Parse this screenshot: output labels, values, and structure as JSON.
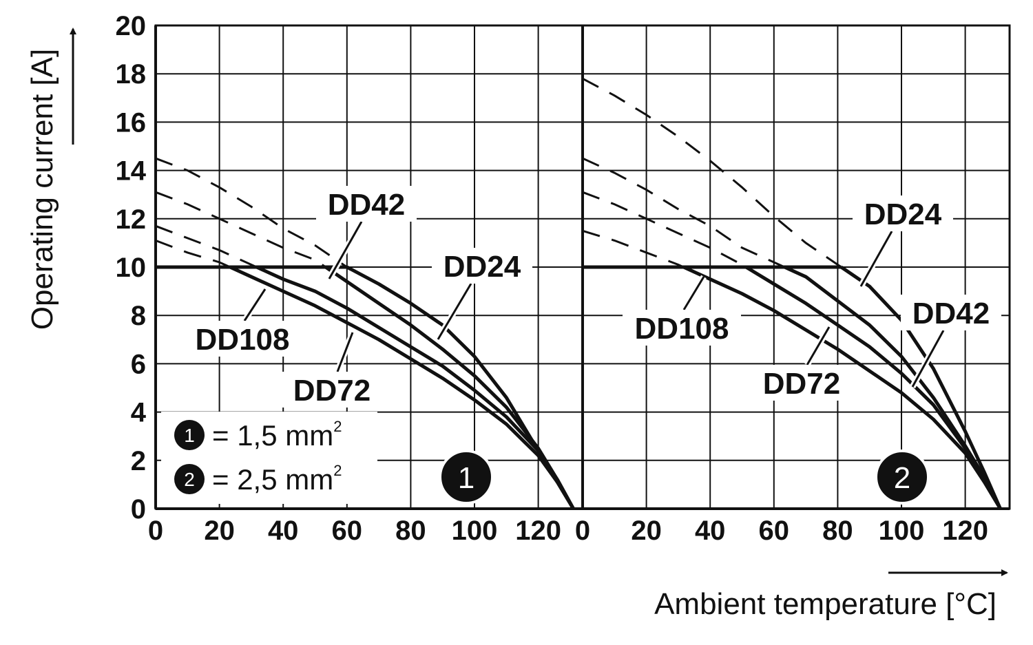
{
  "chart_data": [
    {
      "type": "line",
      "panel_marker": "1",
      "xlabel": "Ambient temperature [°C]",
      "ylabel": "Operating current [A]",
      "xlim": [
        0,
        130
      ],
      "ylim": [
        0,
        20
      ],
      "x_ticks": [
        "0",
        "20",
        "40",
        "60",
        "80",
        "100",
        "120"
      ],
      "y_ticks": [
        "0",
        "2",
        "4",
        "6",
        "8",
        "10",
        "12",
        "14",
        "16",
        "18",
        "20"
      ],
      "grid": true,
      "current_limit": 10,
      "series": [
        {
          "name": "DD24",
          "label_text": "DD24",
          "x": [
            0,
            10,
            20,
            30,
            40,
            50,
            60,
            70,
            80,
            90,
            100,
            110,
            120,
            126,
            131
          ],
          "y": [
            14.5,
            14.0,
            13.3,
            12.5,
            11.6,
            10.9,
            10.0,
            9.3,
            8.5,
            7.6,
            6.3,
            4.6,
            2.4,
            1.1,
            0
          ]
        },
        {
          "name": "DD42",
          "label_text": "DD42",
          "x": [
            0,
            10,
            20,
            30,
            40,
            50,
            60,
            70,
            80,
            90,
            100,
            110,
            120,
            126,
            131
          ],
          "y": [
            13.1,
            12.6,
            12.0,
            11.4,
            10.8,
            10.3,
            9.4,
            8.5,
            7.6,
            6.6,
            5.5,
            4.2,
            2.5,
            1.2,
            0
          ]
        },
        {
          "name": "DD72",
          "label_text": "DD72",
          "x": [
            0,
            10,
            20,
            30,
            40,
            50,
            60,
            70,
            80,
            90,
            100,
            110,
            120,
            126,
            131
          ],
          "y": [
            11.7,
            11.2,
            10.7,
            10.1,
            9.5,
            9.0,
            8.3,
            7.5,
            6.7,
            5.9,
            4.9,
            3.8,
            2.4,
            1.2,
            0
          ]
        },
        {
          "name": "DD108",
          "label_text": "DD108",
          "x": [
            0,
            10,
            20,
            30,
            40,
            50,
            60,
            70,
            80,
            90,
            100,
            110,
            120,
            126,
            131
          ],
          "y": [
            11.1,
            10.6,
            10.2,
            9.6,
            9.0,
            8.4,
            7.7,
            7.0,
            6.2,
            5.4,
            4.5,
            3.5,
            2.2,
            1.1,
            0
          ]
        }
      ]
    },
    {
      "type": "line",
      "panel_marker": "2",
      "xlim": [
        0,
        130
      ],
      "ylim": [
        0,
        20
      ],
      "x_ticks": [
        "0",
        "20",
        "40",
        "60",
        "80",
        "100",
        "120"
      ],
      "grid": true,
      "current_limit": 10,
      "series": [
        {
          "name": "DD24",
          "label_text": "DD24",
          "x": [
            0,
            10,
            20,
            30,
            40,
            50,
            60,
            70,
            80,
            90,
            100,
            110,
            120,
            126,
            131
          ],
          "y": [
            17.8,
            17.1,
            16.3,
            15.4,
            14.4,
            13.3,
            12.1,
            11.0,
            10.1,
            9.2,
            7.8,
            5.8,
            3.2,
            1.5,
            0
          ]
        },
        {
          "name": "DD42",
          "label_text": "DD42",
          "x": [
            0,
            10,
            20,
            30,
            40,
            50,
            60,
            70,
            80,
            90,
            100,
            110,
            120,
            126,
            131
          ],
          "y": [
            14.5,
            13.9,
            13.2,
            12.4,
            11.7,
            10.8,
            10.2,
            9.6,
            8.6,
            7.6,
            6.3,
            4.6,
            2.6,
            1.3,
            0
          ]
        },
        {
          "name": "DD72",
          "label_text": "DD72",
          "x": [
            0,
            10,
            20,
            30,
            40,
            50,
            60,
            70,
            80,
            90,
            100,
            110,
            120,
            126,
            131
          ],
          "y": [
            13.1,
            12.6,
            12.0,
            11.4,
            10.8,
            10.1,
            9.3,
            8.5,
            7.6,
            6.7,
            5.6,
            4.3,
            2.5,
            1.2,
            0
          ]
        },
        {
          "name": "DD108",
          "label_text": "DD108",
          "x": [
            0,
            10,
            20,
            30,
            40,
            50,
            60,
            70,
            80,
            90,
            100,
            110,
            120,
            126,
            131
          ],
          "y": [
            11.5,
            11.1,
            10.6,
            10.1,
            9.5,
            8.9,
            8.2,
            7.4,
            6.6,
            5.7,
            4.8,
            3.7,
            2.3,
            1.1,
            0
          ]
        }
      ]
    }
  ],
  "legend": {
    "items": [
      {
        "marker": "1",
        "text": "= 1,5 mm",
        "sup": "2"
      },
      {
        "marker": "2",
        "text": "= 2,5 mm",
        "sup": "2"
      }
    ]
  }
}
